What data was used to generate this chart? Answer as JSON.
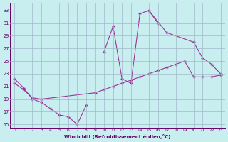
{
  "xlabel": "Windchill (Refroidissement éolien,°C)",
  "bg_color": "#c8eef0",
  "grid_color": "#a0b8c8",
  "line_color": "#993399",
  "ylim": [
    14.5,
    34.2
  ],
  "xlim": [
    -0.5,
    23.5
  ],
  "yticks": [
    15,
    17,
    19,
    21,
    23,
    25,
    27,
    29,
    31,
    33
  ],
  "xticks": [
    0,
    1,
    2,
    3,
    4,
    5,
    6,
    7,
    8,
    9,
    10,
    11,
    12,
    13,
    14,
    15,
    16,
    17,
    18,
    19,
    20,
    21,
    22,
    23
  ],
  "series": [
    {
      "x": [
        0,
        1,
        2,
        3,
        4,
        5,
        6,
        7,
        8
      ],
      "y": [
        22.2,
        20.8,
        19.0,
        18.5,
        17.5,
        16.5,
        16.2,
        15.0,
        18.0
      ]
    },
    {
      "x": [
        10,
        11,
        12,
        13,
        14,
        15,
        16
      ],
      "y": [
        26.5,
        30.5,
        22.2,
        21.5,
        32.5,
        33.0,
        31.0
      ]
    },
    {
      "x": [
        15,
        17,
        20,
        21,
        22,
        23
      ],
      "y": [
        33.0,
        29.5,
        28.0,
        25.5,
        24.5,
        23.0
      ]
    },
    {
      "x": [
        0,
        1,
        2,
        3,
        9,
        10,
        11,
        12,
        13,
        14,
        15,
        16,
        17,
        18,
        19,
        20,
        21,
        22,
        23
      ],
      "y": [
        21.5,
        20.5,
        19.2,
        19.0,
        20.0,
        20.5,
        21.0,
        21.5,
        22.0,
        22.5,
        23.0,
        23.5,
        24.0,
        24.5,
        25.0,
        22.5,
        22.5,
        22.5,
        22.8
      ]
    }
  ]
}
